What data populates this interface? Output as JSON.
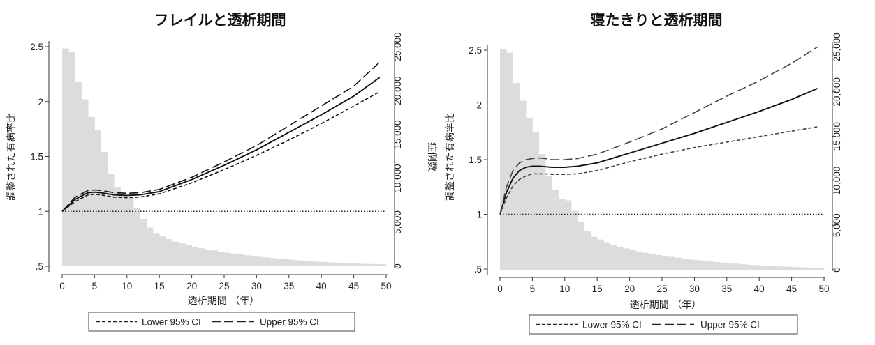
{
  "chart_data": [
    {
      "type": "line",
      "title": "フレイルと透析期間",
      "xlabel": "透析期間 （年）",
      "ylabel": "調整された有病率比",
      "y2label": "症例数",
      "xlim": [
        0,
        50
      ],
      "ylim": [
        0.5,
        2.5
      ],
      "y2lim": [
        0,
        25000
      ],
      "x_ticks": [
        "0",
        "5",
        "10",
        "15",
        "20",
        "25",
        "30",
        "35",
        "40",
        "45",
        "50"
      ],
      "y_ticks": [
        ".5",
        "1",
        "1.5",
        "2",
        "2.5"
      ],
      "y2_ticks": [
        "0",
        "5,000",
        "10,000",
        "15,000",
        "20,000",
        "25,000"
      ],
      "reference_line": 1,
      "histogram": {
        "bin_width": 1,
        "bin_start": 0,
        "counts": [
          24800,
          24400,
          21000,
          19000,
          17000,
          15500,
          13000,
          10500,
          9000,
          8000,
          7800,
          6600,
          5400,
          4400,
          3700,
          3400,
          3100,
          2800,
          2600,
          2400,
          2200,
          2050,
          1900,
          1800,
          1650,
          1550,
          1450,
          1350,
          1250,
          1150,
          1080,
          1000,
          920,
          860,
          800,
          740,
          680,
          620,
          560,
          520,
          480,
          440,
          400,
          370,
          340,
          310,
          280,
          260,
          240,
          220
        ]
      },
      "series": [
        {
          "name": "",
          "style": "solid",
          "x": [
            0,
            2,
            4,
            5,
            6,
            8,
            10,
            12,
            15,
            20,
            25,
            30,
            35,
            40,
            45,
            49
          ],
          "y": [
            1.0,
            1.11,
            1.17,
            1.175,
            1.17,
            1.15,
            1.145,
            1.15,
            1.18,
            1.29,
            1.42,
            1.56,
            1.72,
            1.88,
            2.05,
            2.22
          ]
        },
        {
          "name": "Lower 95% CI",
          "style": "short-dash",
          "x": [
            0,
            2,
            4,
            5,
            6,
            8,
            10,
            12,
            15,
            20,
            25,
            30,
            35,
            40,
            45,
            49
          ],
          "y": [
            1.0,
            1.09,
            1.15,
            1.155,
            1.15,
            1.13,
            1.125,
            1.13,
            1.16,
            1.26,
            1.38,
            1.51,
            1.65,
            1.8,
            1.96,
            2.09
          ]
        },
        {
          "name": "Upper 95% CI",
          "style": "long-dash",
          "x": [
            0,
            2,
            4,
            5,
            6,
            8,
            10,
            12,
            15,
            20,
            25,
            30,
            35,
            40,
            45,
            49
          ],
          "y": [
            1.0,
            1.13,
            1.19,
            1.195,
            1.19,
            1.17,
            1.165,
            1.17,
            1.2,
            1.31,
            1.45,
            1.6,
            1.78,
            1.96,
            2.14,
            2.36
          ]
        }
      ],
      "legend": {
        "position": "bottom",
        "entries": [
          "Lower 95% CI",
          "Upper 95% CI"
        ]
      }
    },
    {
      "type": "line",
      "title": "寝たきりと透析期間",
      "xlabel": "透析期間 （年）",
      "ylabel": "調整された有病率比",
      "y2label": "",
      "xlim": [
        0,
        50
      ],
      "ylim": [
        0.5,
        2.5
      ],
      "y2lim": [
        0,
        25000
      ],
      "x_ticks": [
        "0",
        "5",
        "10",
        "15",
        "20",
        "25",
        "30",
        "35",
        "40",
        "45",
        "50"
      ],
      "y_ticks": [
        ".5",
        "1",
        "1.5",
        "2",
        "2.5"
      ],
      "y2_ticks": [
        "0",
        "5,000",
        "10,000",
        "15,000",
        "20,000",
        "25,000"
      ],
      "reference_line": 1,
      "histogram": {
        "bin_width": 1,
        "bin_start": 0,
        "counts": [
          24800,
          24400,
          21000,
          19000,
          17000,
          15500,
          13000,
          10500,
          9000,
          8000,
          7800,
          6600,
          5400,
          4400,
          3700,
          3400,
          3100,
          2800,
          2600,
          2400,
          2200,
          2050,
          1900,
          1800,
          1650,
          1550,
          1450,
          1350,
          1250,
          1150,
          1080,
          1000,
          920,
          860,
          800,
          740,
          680,
          620,
          560,
          520,
          480,
          440,
          400,
          370,
          340,
          310,
          280,
          260,
          240,
          220
        ]
      },
      "series": [
        {
          "name": "",
          "style": "solid",
          "x": [
            0,
            1,
            2,
            3,
            4,
            5,
            6,
            7,
            8,
            10,
            12,
            15,
            20,
            25,
            30,
            35,
            40,
            45,
            49
          ],
          "y": [
            1.0,
            1.2,
            1.33,
            1.4,
            1.43,
            1.44,
            1.44,
            1.435,
            1.43,
            1.43,
            1.44,
            1.47,
            1.56,
            1.65,
            1.74,
            1.84,
            1.94,
            2.05,
            2.15
          ]
        },
        {
          "name": "Lower 95% CI",
          "style": "short-dash",
          "x": [
            0,
            1,
            2,
            3,
            4,
            5,
            6,
            7,
            8,
            10,
            12,
            15,
            20,
            25,
            30,
            35,
            40,
            45,
            49
          ],
          "y": [
            1.0,
            1.15,
            1.26,
            1.32,
            1.35,
            1.37,
            1.37,
            1.37,
            1.365,
            1.365,
            1.37,
            1.4,
            1.48,
            1.55,
            1.61,
            1.66,
            1.71,
            1.76,
            1.8
          ]
        },
        {
          "name": "Upper 95% CI",
          "style": "long-dash",
          "x": [
            0,
            1,
            2,
            3,
            4,
            5,
            6,
            7,
            8,
            10,
            12,
            15,
            20,
            25,
            30,
            35,
            40,
            45,
            49
          ],
          "y": [
            1.0,
            1.25,
            1.4,
            1.47,
            1.5,
            1.51,
            1.515,
            1.51,
            1.5,
            1.5,
            1.51,
            1.55,
            1.66,
            1.78,
            1.93,
            2.08,
            2.22,
            2.38,
            2.53
          ]
        }
      ],
      "legend": {
        "position": "bottom",
        "entries": [
          "Lower 95% CI",
          "Upper 95% CI"
        ]
      }
    }
  ]
}
